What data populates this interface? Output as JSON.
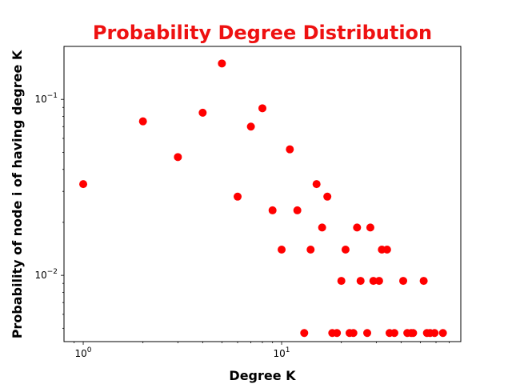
{
  "chart_data": {
    "type": "scatter",
    "title": "Probability Degree Distribution",
    "xlabel": "Degree K",
    "ylabel": "Probability of node i of having degree K",
    "x_scale": "log",
    "y_scale": "log",
    "xlim": [
      0.8,
      80
    ],
    "ylim": [
      0.0042,
      0.2
    ],
    "grid": false,
    "x_ticks": [
      {
        "value": 1,
        "base": "10",
        "exp": "0"
      },
      {
        "value": 10,
        "base": "10",
        "exp": "1"
      }
    ],
    "y_ticks": [
      {
        "value": 0.01,
        "base": "10",
        "exp": "−2"
      },
      {
        "value": 0.1,
        "base": "10",
        "exp": "−1"
      }
    ],
    "series": [
      {
        "points": [
          [
            1,
            0.033
          ],
          [
            2,
            0.075
          ],
          [
            3,
            0.047
          ],
          [
            4,
            0.084
          ],
          [
            5,
            0.16
          ],
          [
            6,
            0.028
          ],
          [
            7,
            0.07
          ],
          [
            8,
            0.089
          ],
          [
            9,
            0.0234
          ],
          [
            10,
            0.014
          ],
          [
            11,
            0.052
          ],
          [
            12,
            0.0234
          ],
          [
            13,
            0.0047
          ],
          [
            14,
            0.014
          ],
          [
            15,
            0.033
          ],
          [
            16,
            0.0187
          ],
          [
            17,
            0.028
          ],
          [
            18,
            0.0047
          ],
          [
            19,
            0.0047
          ],
          [
            20,
            0.0093
          ],
          [
            21,
            0.014
          ],
          [
            22,
            0.0047
          ],
          [
            23,
            0.0047
          ],
          [
            24,
            0.0187
          ],
          [
            25,
            0.0093
          ],
          [
            27,
            0.0047
          ],
          [
            28,
            0.0187
          ],
          [
            29,
            0.0093
          ],
          [
            31,
            0.0093
          ],
          [
            32,
            0.014
          ],
          [
            34,
            0.014
          ],
          [
            35,
            0.0047
          ],
          [
            37,
            0.0047
          ],
          [
            41,
            0.0093
          ],
          [
            43,
            0.0047
          ],
          [
            45,
            0.0047
          ],
          [
            46,
            0.0047
          ],
          [
            52,
            0.0093
          ],
          [
            54,
            0.0047
          ],
          [
            56,
            0.0047
          ],
          [
            59,
            0.0047
          ],
          [
            65,
            0.0047
          ]
        ]
      }
    ]
  },
  "colors": {
    "title": "#ee1111",
    "marker": "#ff0000",
    "axes": "#000000"
  }
}
